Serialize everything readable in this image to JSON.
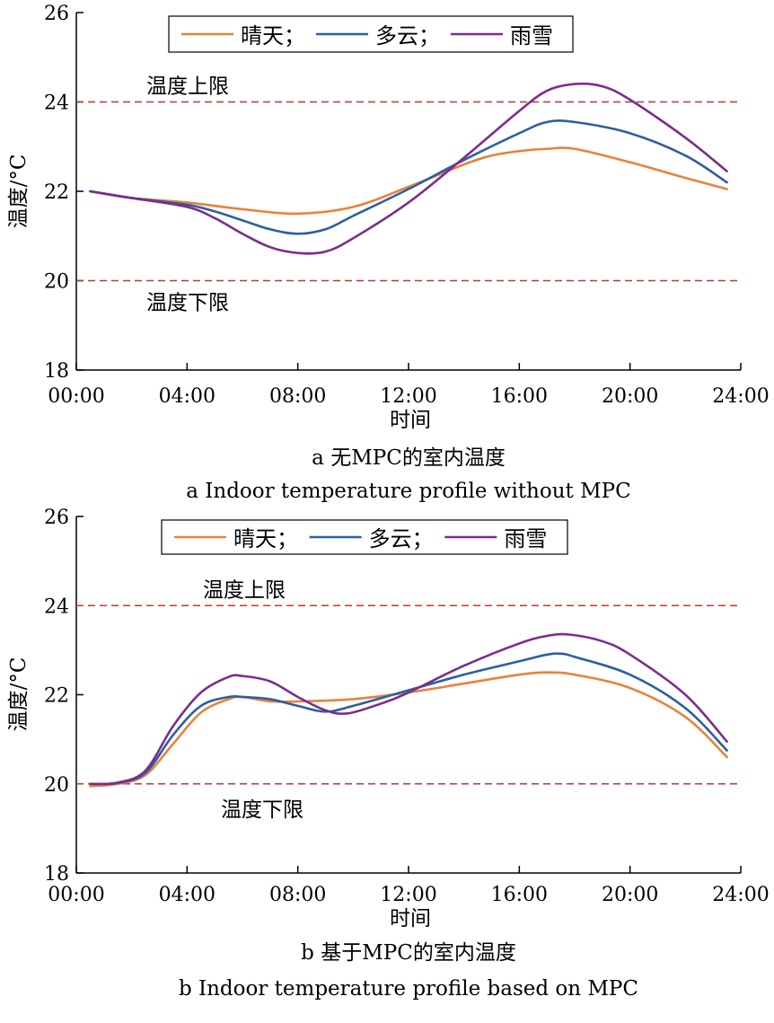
{
  "chart_data": [
    {
      "type": "line",
      "caption_zh": "a  无MPC的室内温度",
      "caption_en": "a  Indoor temperature profile without MPC",
      "xlabel": "时间",
      "ylabel": "温度/°C",
      "ylim": [
        18,
        26
      ],
      "xlim": [
        0,
        24
      ],
      "x_ticks": [
        "00:00",
        "04:00",
        "08:00",
        "12:00",
        "16:00",
        "20:00",
        "24:00"
      ],
      "y_ticks": [
        "18",
        "20",
        "22",
        "24",
        "26"
      ],
      "legend": {
        "placement": "top",
        "entries": [
          "晴天；",
          "多云；",
          "雨雪"
        ]
      },
      "limits": [
        {
          "label": "温度上限",
          "value": 24,
          "color": "#c0392b"
        },
        {
          "label": "温度下限",
          "value": 20,
          "color": "#c0392b"
        }
      ],
      "series": [
        {
          "name": "晴天",
          "color": "#e8823a",
          "x": [
            0.5,
            2,
            4,
            6,
            8,
            10,
            12,
            14,
            15,
            16,
            17,
            18,
            20,
            22,
            23.5
          ],
          "y": [
            22,
            21.85,
            21.75,
            21.6,
            21.5,
            21.65,
            22.1,
            22.6,
            22.8,
            22.9,
            22.95,
            22.95,
            22.65,
            22.3,
            22.05
          ]
        },
        {
          "name": "多云",
          "color": "#2d5fa3",
          "x": [
            0.5,
            2,
            4,
            5,
            6,
            7,
            8,
            9,
            10,
            12,
            14,
            16,
            17,
            18,
            20,
            22,
            23.5
          ],
          "y": [
            22,
            21.85,
            21.7,
            21.55,
            21.35,
            21.15,
            21.05,
            21.15,
            21.45,
            22.05,
            22.7,
            23.3,
            23.55,
            23.55,
            23.3,
            22.8,
            22.2
          ]
        },
        {
          "name": "雨雪",
          "color": "#7b2d8e",
          "x": [
            0.5,
            2,
            4,
            5,
            6,
            7,
            8,
            9,
            10,
            12,
            14,
            16,
            17,
            18,
            19,
            20,
            22,
            23.5
          ],
          "y": [
            22,
            21.85,
            21.65,
            21.4,
            21.05,
            20.75,
            20.62,
            20.65,
            20.95,
            21.75,
            22.75,
            23.8,
            24.25,
            24.4,
            24.35,
            24.05,
            23.2,
            22.45
          ]
        }
      ]
    },
    {
      "type": "line",
      "caption_zh": "b  基于MPC的室内温度",
      "caption_en": "b  Indoor temperature profile based on MPC",
      "xlabel": "时间",
      "ylabel": "温度/°C",
      "ylim": [
        18,
        26
      ],
      "xlim": [
        0,
        24
      ],
      "x_ticks": [
        "00:00",
        "04:00",
        "08:00",
        "12:00",
        "16:00",
        "20:00",
        "24:00"
      ],
      "y_ticks": [
        "18",
        "20",
        "22",
        "24",
        "26"
      ],
      "legend": {
        "placement": "top",
        "entries": [
          "晴天；",
          "多云；",
          "雨雪"
        ]
      },
      "limits": [
        {
          "label": "温度上限",
          "value": 24,
          "color": "#c0392b"
        },
        {
          "label": "温度下限",
          "value": 20,
          "color": "#c0392b"
        }
      ],
      "series": [
        {
          "name": "晴天",
          "color": "#e8823a",
          "x": [
            0.5,
            1.5,
            2.5,
            3.5,
            4.5,
            5.5,
            6,
            7,
            8,
            10,
            12,
            14,
            16,
            17,
            18,
            20,
            22,
            23.5
          ],
          "y": [
            19.95,
            20,
            20.2,
            20.9,
            21.6,
            21.9,
            21.95,
            21.85,
            21.85,
            21.9,
            22.05,
            22.25,
            22.45,
            22.5,
            22.45,
            22.15,
            21.5,
            20.6
          ]
        },
        {
          "name": "多云",
          "color": "#2d5fa3",
          "x": [
            0.5,
            1.5,
            2.5,
            3.5,
            4.5,
            5.5,
            6,
            7,
            8,
            9,
            10,
            12,
            14,
            16,
            17,
            17.5,
            18,
            20,
            22,
            23.5
          ],
          "y": [
            20,
            20.02,
            20.25,
            21.1,
            21.75,
            21.95,
            21.95,
            21.9,
            21.75,
            21.62,
            21.75,
            22.1,
            22.45,
            22.75,
            22.9,
            22.92,
            22.85,
            22.45,
            21.7,
            20.75
          ]
        },
        {
          "name": "雨雪",
          "color": "#7b2d8e",
          "x": [
            0.5,
            1.5,
            2.5,
            3.5,
            4.5,
            5.5,
            6,
            7,
            8,
            9,
            9.8,
            11,
            12,
            14,
            16,
            17,
            17.8,
            19,
            20,
            22,
            23.5
          ],
          "y": [
            20,
            20.03,
            20.3,
            21.3,
            22.05,
            22.4,
            22.42,
            22.3,
            21.95,
            21.65,
            21.58,
            21.8,
            22.05,
            22.65,
            23.15,
            23.32,
            23.35,
            23.2,
            22.9,
            22,
            20.95
          ]
        }
      ]
    }
  ]
}
